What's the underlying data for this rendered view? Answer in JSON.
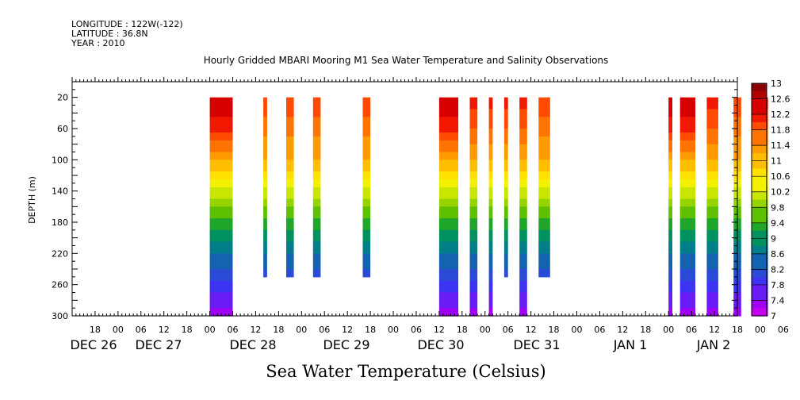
{
  "header": {
    "longitude": "LONGITUDE : 122W(-122)",
    "latitude": "LATITUDE : 36.8N",
    "year": "YEAR : 2010"
  },
  "chart_data": {
    "type": "heatmap",
    "title": "Hourly Gridded MBARI Mooring M1 Sea Water Temperature and Salinity Observations",
    "xlabel": "Sea Water Temperature (Celsius)",
    "ylabel": "DEPTH (m)",
    "y_ticks": [
      20,
      60,
      100,
      140,
      180,
      220,
      260,
      300
    ],
    "ylim": [
      300,
      0
    ],
    "x_hour_ticks": [
      "18",
      "00",
      "06",
      "12",
      "18",
      "00",
      "06",
      "12",
      "18",
      "00",
      "06",
      "12",
      "18",
      "00",
      "06",
      "12",
      "18",
      "00",
      "06",
      "12",
      "18",
      "00",
      "06",
      "12",
      "18",
      "00",
      "06",
      "12",
      "18",
      "00",
      "06",
      "12"
    ],
    "x_day_labels": [
      "DEC 26",
      "DEC 27",
      "DEC 28",
      "DEC 29",
      "DEC 30",
      "DEC 31",
      "JAN  1",
      "JAN  2"
    ],
    "colorbar": {
      "labels": [
        "13",
        "12.6",
        "12.2",
        "11.8",
        "11.4",
        "11",
        "10.6",
        "10.2",
        "9.8",
        "9.4",
        "9",
        "8.6",
        "8.2",
        "7.8",
        "7.4",
        "7"
      ],
      "min": 7,
      "max": 13
    },
    "observation_columns": [
      {
        "start": "DEC 28 00",
        "end": "DEC 28 06",
        "bottom_depth": 300,
        "surface_temp": 12.6
      },
      {
        "start": "DEC 28 14",
        "end": "DEC 28 15",
        "bottom_depth": 250,
        "surface_temp": 12.0
      },
      {
        "start": "DEC 28 20",
        "end": "DEC 28 22",
        "bottom_depth": 250,
        "surface_temp": 12.0
      },
      {
        "start": "DEC 29 03",
        "end": "DEC 29 05",
        "bottom_depth": 250,
        "surface_temp": 12.0
      },
      {
        "start": "DEC 29 16",
        "end": "DEC 29 18",
        "bottom_depth": 250,
        "surface_temp": 12.0
      },
      {
        "start": "DEC 30 12",
        "end": "DEC 30 17",
        "bottom_depth": 300,
        "surface_temp": 12.6
      },
      {
        "start": "DEC 30 20",
        "end": "DEC 30 22",
        "bottom_depth": 300,
        "surface_temp": 12.2
      },
      {
        "start": "DEC 31 01",
        "end": "DEC 31 02",
        "bottom_depth": 300,
        "surface_temp": 12.2
      },
      {
        "start": "DEC 31 05",
        "end": "DEC 31 06",
        "bottom_depth": 250,
        "surface_temp": 12.2
      },
      {
        "start": "DEC 31 09",
        "end": "DEC 31 11",
        "bottom_depth": 300,
        "surface_temp": 12.2
      },
      {
        "start": "DEC 31 14",
        "end": "DEC 31 17",
        "bottom_depth": 250,
        "surface_temp": 12.0
      },
      {
        "start": "JAN 1 00",
        "end": "JAN 1 01",
        "bottom_depth": 300,
        "surface_temp": 12.6
      },
      {
        "start": "JAN 1 03",
        "end": "JAN 1 07",
        "bottom_depth": 300,
        "surface_temp": 12.6
      },
      {
        "start": "JAN 1 10",
        "end": "JAN 1 13",
        "bottom_depth": 300,
        "surface_temp": 12.2
      },
      {
        "start": "JAN 1 17",
        "end": "JAN 1 19",
        "bottom_depth": 300,
        "surface_temp": 12.0
      },
      {
        "start": "JAN 1 23",
        "end": "JAN 2 02",
        "bottom_depth": 300,
        "surface_temp": 12.2
      }
    ],
    "grid": false,
    "legend": "right colorbar"
  }
}
